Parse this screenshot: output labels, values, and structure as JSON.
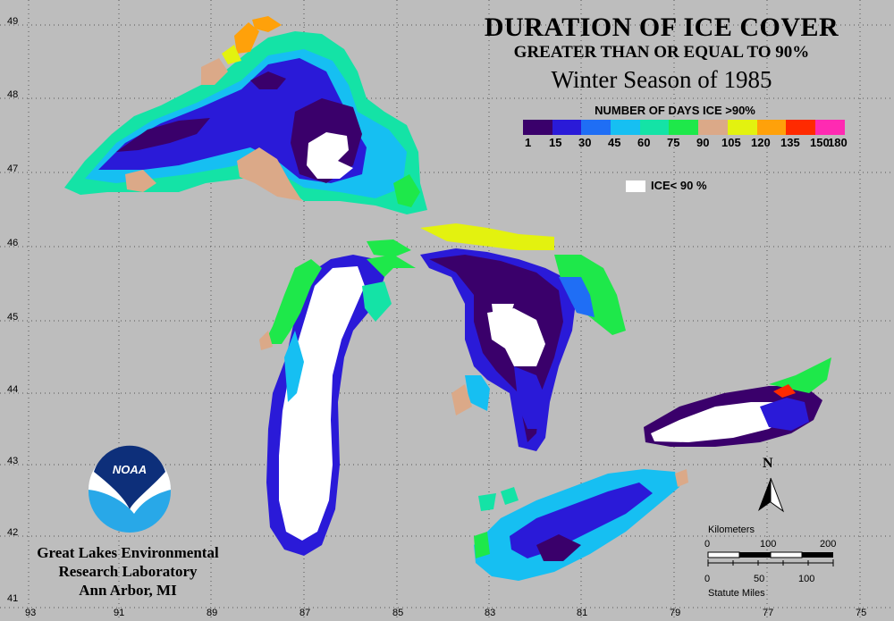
{
  "title": {
    "line1": "DURATION OF ICE COVER",
    "line2": "GREATER THAN OR EQUAL TO 90%",
    "line3": "Winter Season of 1985"
  },
  "legend": {
    "title": "NUMBER OF DAYS ICE >90%",
    "ticks": [
      "1",
      "15",
      "30",
      "45",
      "60",
      "75",
      "90",
      "105",
      "120",
      "135",
      "150",
      "180"
    ],
    "colors": [
      "#3a006b",
      "#2a1ad8",
      "#1f6ef5",
      "#16bff2",
      "#14e3a6",
      "#1ee84a",
      "#dba988",
      "#e3f20f",
      "#ffa10a",
      "#ff2a00",
      "#ff2ab2"
    ],
    "ice_label": "ICE< 90 %",
    "ice_color": "#ffffff"
  },
  "axes": {
    "longitude": [
      "93",
      "91",
      "89",
      "87",
      "85",
      "83",
      "81",
      "79",
      "77",
      "75"
    ],
    "latitude": [
      "49",
      "48",
      "47",
      "46",
      "45",
      "44",
      "43",
      "42",
      "41"
    ]
  },
  "lab": {
    "line1": "Great Lakes Environmental",
    "line2": "Research Laboratory",
    "line3": "Ann Arbor, MI"
  },
  "logo": {
    "text": "NOAA"
  },
  "north_arrow": {
    "label": "N"
  },
  "scale": {
    "km_title": "Kilometers",
    "km_ticks": [
      "0",
      "100",
      "200"
    ],
    "mi_ticks": [
      "0",
      "50",
      "100"
    ],
    "mi_title": "Statute Miles"
  }
}
